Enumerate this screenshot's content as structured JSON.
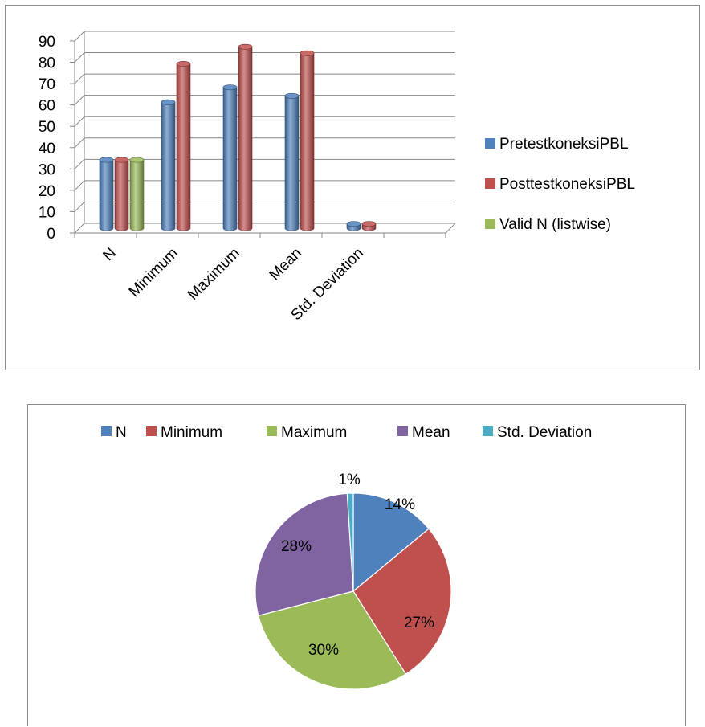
{
  "chart_data": [
    {
      "type": "bar",
      "categories": [
        "N",
        "Minimum",
        "Maximum",
        "Mean",
        "Std. Deviation"
      ],
      "series": [
        {
          "name": "PretestkoneksiPBL",
          "color": "#4F81BD",
          "values": [
            32,
            59,
            66,
            62,
            2
          ]
        },
        {
          "name": "PosttestkoneksiPBL",
          "color": "#C0504D",
          "values": [
            32,
            77,
            85,
            82,
            2
          ]
        },
        {
          "name": "Valid N (listwise)",
          "color": "#9BBB59",
          "values": [
            32,
            null,
            null,
            null,
            null
          ]
        }
      ],
      "ylim": [
        0,
        90
      ],
      "yticks": [
        "0",
        "10",
        "20",
        "30",
        "40",
        "50",
        "60",
        "70",
        "80",
        "90"
      ],
      "grid": true,
      "legend": "right"
    },
    {
      "type": "pie",
      "labels": [
        "N",
        "Minimum",
        "Maximum",
        "Mean",
        "Std. Deviation"
      ],
      "values": [
        14,
        27,
        30,
        28,
        1
      ],
      "data_labels": [
        "14%",
        "27%",
        "30%",
        "28%",
        "1%"
      ],
      "colors": [
        "#4F81BD",
        "#C0504D",
        "#9BBB59",
        "#8064A2",
        "#4BACC6"
      ],
      "legend": "top"
    }
  ]
}
